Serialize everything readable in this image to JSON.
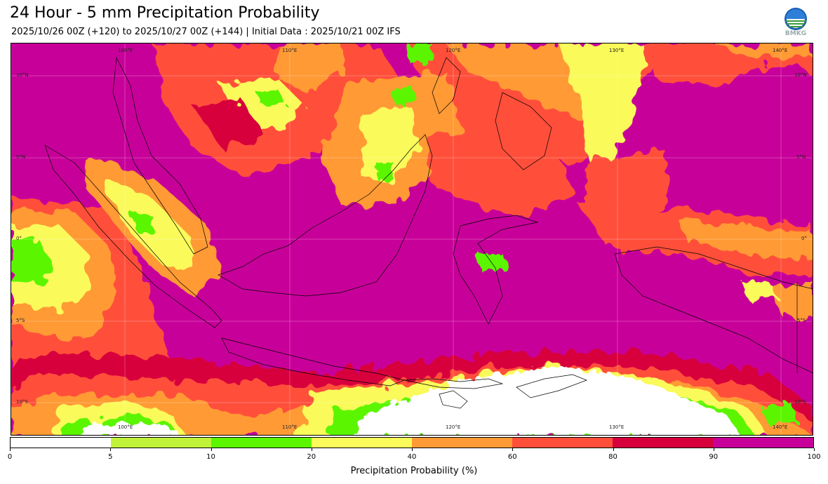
{
  "header": {
    "title": "24 Hour - 5 mm Precipitation Probability",
    "subtitle": "2025/10/26 00Z (+120) to 2025/10/27 00Z (+144) | Initial Data : 2025/10/21 00Z IFS"
  },
  "logo": {
    "text": "BMKG"
  },
  "map": {
    "lon_labels_top": [
      "100°E",
      "110°E",
      "120°E",
      "130°E",
      "140°E"
    ],
    "lon_labels_bottom": [
      "100°E",
      "110°E",
      "120°E",
      "130°E",
      "140°E"
    ],
    "lat_labels_left": [
      "10°N",
      "5°N",
      "0°",
      "5°S",
      "10°S"
    ],
    "lat_labels_right": [
      "10°N",
      "5°N",
      "0°",
      "5°S",
      "10°S"
    ]
  },
  "colorbar": {
    "label": "Precipitation Probability (%)",
    "ticks": [
      "0",
      "5",
      "10",
      "20",
      "40",
      "60",
      "80",
      "90",
      "100"
    ],
    "colors": [
      "#ffffff",
      "#c0f23a",
      "#5cf500",
      "#fafa5a",
      "#ff9a35",
      "#ff4f3a",
      "#d7003c",
      "#c8009a"
    ]
  },
  "palette": {
    "magenta": "#c8009a",
    "crimson": "#d7003c",
    "red": "#ff4f3a",
    "orange": "#ff9a35",
    "yellow": "#fafa5a",
    "green": "#5cf500",
    "white": "#ffffff"
  }
}
